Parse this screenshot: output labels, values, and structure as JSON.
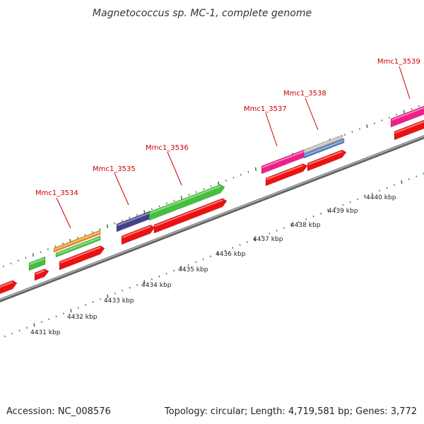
{
  "title": "Magnetococcus sp. MC-1, complete genome",
  "accession": "Accession: NC_008576",
  "topology": "Topology: circular; Length: 4,719,581 bp; Genes: 3,772",
  "axis_labels": [
    "4431 kbp",
    "4432 kbp",
    "4433 kbp",
    "4434 kbp",
    "4435 kbp",
    "4436 kbp",
    "4437 kbp",
    "4438 kbp",
    "4439 kbp",
    "4440 kbp"
  ],
  "gene_labels": [
    "Mmc1_3534",
    "Mmc1_3535",
    "Mmc1_3536",
    "Mmc1_3537",
    "Mmc1_3538",
    "Mmc1_3539"
  ],
  "colors": {
    "backbone": "#8a8a8a",
    "tick": "#2e8b2e",
    "label": "#cc0000",
    "cds": "#ee1111",
    "green": "#44c03c",
    "orange": "#f08a1c",
    "purple": "#43408c",
    "magenta": "#ee1f8c",
    "gray": "#b8b8b8",
    "steel": "#4d7fbf"
  }
}
